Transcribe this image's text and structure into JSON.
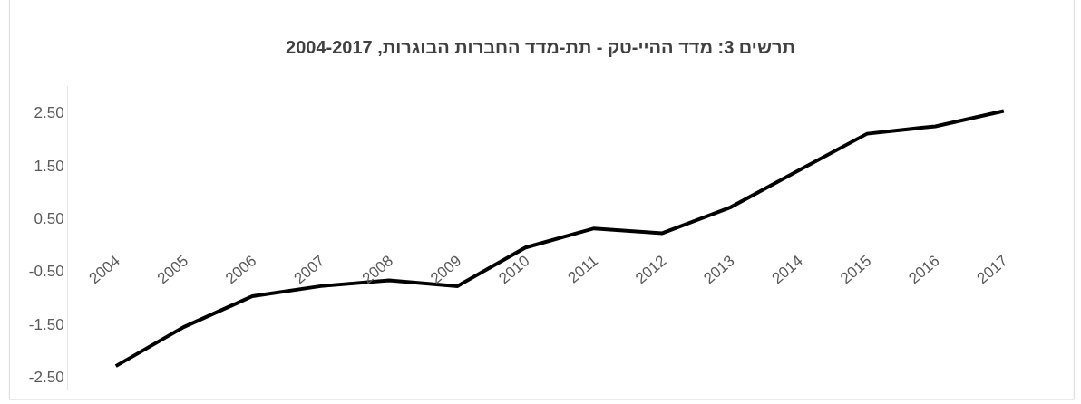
{
  "chart_data": {
    "type": "line",
    "title": "תרשים 3: מדד ההיי-טק - תת-מדד החברות הבוגרות, 2004-2017",
    "categories": [
      "2004",
      "2005",
      "2006",
      "2007",
      "2008",
      "2009",
      "2010",
      "2011",
      "2012",
      "2013",
      "2014",
      "2015",
      "2016",
      "2017"
    ],
    "series": [
      {
        "color": "#000000",
        "values": [
          -2.29,
          -1.55,
          -0.97,
          -0.78,
          -0.67,
          -0.78,
          -0.05,
          0.31,
          0.22,
          0.71,
          1.41,
          2.1,
          2.24,
          2.53
        ]
      }
    ],
    "ylim": [
      -2.75,
      3.0
    ],
    "yticks": [
      {
        "value": -2.5,
        "label": "-2.50"
      },
      {
        "value": -1.5,
        "label": "-1.50"
      },
      {
        "value": -0.5,
        "label": "-0.50"
      },
      {
        "value": 0.5,
        "label": "0.50"
      },
      {
        "value": 1.5,
        "label": "1.50"
      },
      {
        "value": 2.5,
        "label": "2.50"
      }
    ],
    "marker": "none",
    "line_style": "solid"
  }
}
